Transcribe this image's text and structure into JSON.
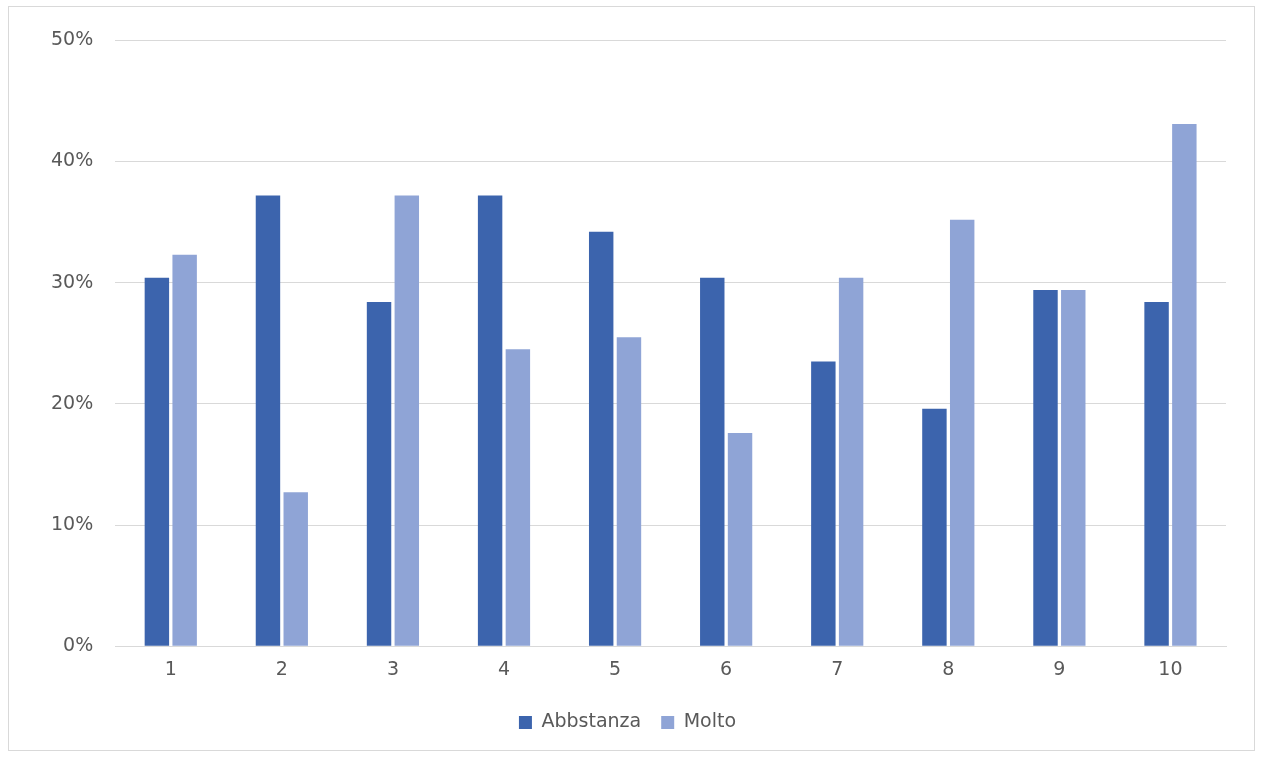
{
  "chart_data": {
    "type": "bar",
    "categories": [
      "1",
      "2",
      "3",
      "4",
      "5",
      "6",
      "7",
      "8",
      "9",
      "10"
    ],
    "series": [
      {
        "name": "Abbstanza",
        "color": "#3c64ad",
        "values": [
          30.4,
          37.2,
          28.4,
          37.2,
          34.2,
          30.4,
          23.5,
          19.6,
          29.4,
          28.4
        ]
      },
      {
        "name": "Molto",
        "color": "#8fa4d6",
        "values": [
          32.3,
          12.7,
          37.2,
          24.5,
          25.5,
          17.6,
          30.4,
          35.2,
          29.4,
          43.1
        ]
      }
    ],
    "ylim": [
      0,
      50
    ],
    "yticks": [
      {
        "value": 0,
        "label": "0%"
      },
      {
        "value": 10,
        "label": "10%"
      },
      {
        "value": 20,
        "label": "20%"
      },
      {
        "value": 30,
        "label": "30%"
      },
      {
        "value": 40,
        "label": "40%"
      },
      {
        "value": 50,
        "label": "50%"
      }
    ],
    "grid": "y",
    "legend": "bottom"
  }
}
